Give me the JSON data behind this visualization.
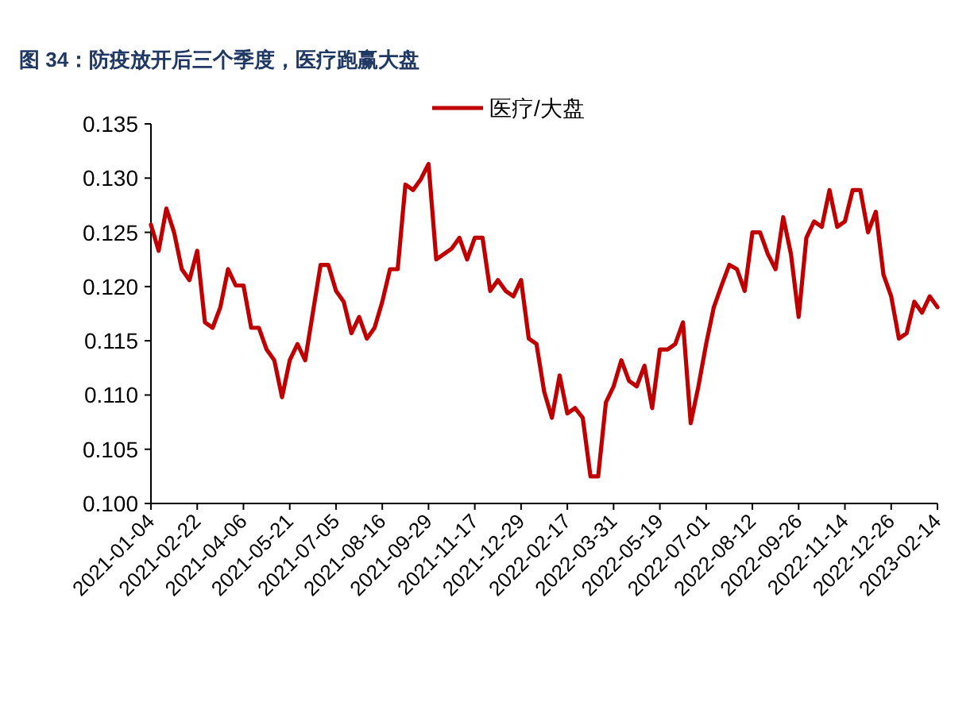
{
  "chart_data": {
    "type": "line",
    "title": "图 34：防疫放开后三个季度，医疗跑赢大盘",
    "categories": [
      "2021-01-04",
      null,
      null,
      null,
      null,
      null,
      "2021-02-22",
      null,
      null,
      null,
      null,
      null,
      "2021-04-06",
      null,
      null,
      null,
      null,
      null,
      "2021-05-21",
      null,
      null,
      null,
      null,
      null,
      "2021-07-05",
      null,
      null,
      null,
      null,
      null,
      "2021-08-16",
      null,
      null,
      null,
      null,
      null,
      "2021-09-29",
      null,
      null,
      null,
      null,
      null,
      "2021-11-17",
      null,
      null,
      null,
      null,
      null,
      "2021-12-29",
      null,
      null,
      null,
      null,
      null,
      "2022-02-17",
      null,
      null,
      null,
      null,
      null,
      "2022-03-31",
      null,
      null,
      null,
      null,
      null,
      "2022-05-19",
      null,
      null,
      null,
      null,
      null,
      "2022-07-01",
      null,
      null,
      null,
      null,
      null,
      "2022-08-12",
      null,
      null,
      null,
      null,
      null,
      "2022-09-26",
      null,
      null,
      null,
      null,
      null,
      "2022-11-14",
      null,
      null,
      null,
      null,
      null,
      "2022-12-26",
      null,
      null,
      null,
      null,
      null,
      "2023-02-14"
    ],
    "series": [
      {
        "name": "医疗/大盘",
        "color": "#c00000",
        "values": [
          0.1257,
          0.1233,
          0.1272,
          0.125,
          0.1216,
          0.1206,
          0.1233,
          0.1167,
          0.1162,
          0.1181,
          0.1216,
          0.1201,
          0.1201,
          0.1162,
          0.1162,
          0.1142,
          0.1132,
          0.1098,
          0.1132,
          0.1147,
          0.1132,
          0.1176,
          0.122,
          0.122,
          0.1196,
          0.1186,
          0.1157,
          0.1172,
          0.1152,
          0.1162,
          0.1186,
          0.1216,
          0.1216,
          0.1294,
          0.1289,
          0.1299,
          0.1313,
          0.1225,
          0.123,
          0.1235,
          0.1245,
          0.1225,
          0.1245,
          0.1245,
          0.1196,
          0.1206,
          0.1196,
          0.1191,
          0.1206,
          0.1152,
          0.1147,
          0.1103,
          0.1079,
          0.1118,
          0.1083,
          0.1088,
          0.1079,
          0.1025,
          0.1025,
          0.1093,
          0.1108,
          0.1132,
          0.1113,
          0.1108,
          0.1127,
          0.1088,
          0.1142,
          0.1142,
          0.1147,
          0.1167,
          0.1074,
          0.1108,
          0.1147,
          0.1181,
          0.1201,
          0.122,
          0.1216,
          0.1196,
          0.125,
          0.125,
          0.123,
          0.1216,
          0.1264,
          0.123,
          0.1172,
          0.1245,
          0.126,
          0.1255,
          0.1289,
          0.1255,
          0.126,
          0.1289,
          0.1289,
          0.125,
          0.1269,
          0.1211,
          0.1191,
          0.1152,
          0.1157,
          0.1186,
          0.1176,
          0.1191,
          0.1181
        ]
      }
    ],
    "ylim": [
      0.1,
      0.135
    ],
    "yticks": [
      {
        "value": 0.1,
        "label": "0.100"
      },
      {
        "value": 0.105,
        "label": "0.105"
      },
      {
        "value": 0.11,
        "label": "0.110"
      },
      {
        "value": 0.115,
        "label": "0.115"
      },
      {
        "value": 0.12,
        "label": "0.120"
      },
      {
        "value": 0.125,
        "label": "0.125"
      },
      {
        "value": 0.13,
        "label": "0.130"
      },
      {
        "value": 0.135,
        "label": "0.135"
      }
    ],
    "legend": "top",
    "grid": false,
    "marker": "none",
    "line_style": "solid"
  }
}
